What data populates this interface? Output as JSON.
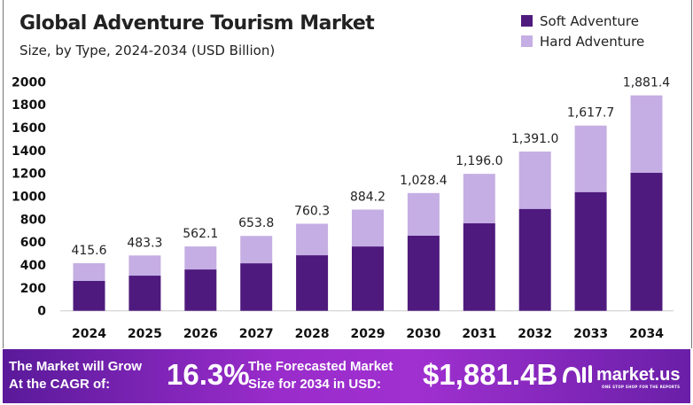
{
  "chart_data": {
    "type": "bar",
    "stacked": true,
    "title": "Global Adventure Tourism Market",
    "subtitle": "Size, by Type, 2024-2034 (USD Billion)",
    "categories": [
      "2024",
      "2025",
      "2026",
      "2027",
      "2028",
      "2029",
      "2030",
      "2031",
      "2032",
      "2033",
      "2034"
    ],
    "series": [
      {
        "name": "Soft Adventure",
        "color": "#4f1a7e",
        "values": [
          261,
          307,
          361,
          415,
          485,
          562,
          656,
          764,
          890,
          1037,
          1205
        ]
      },
      {
        "name": "Hard Adventure",
        "color": "#c5aee3",
        "values": [
          154.6,
          176.3,
          201.1,
          238.8,
          275.3,
          322.2,
          372.4,
          432.0,
          501.0,
          580.7,
          676.4
        ]
      }
    ],
    "totals_labels": [
      "415.6",
      "483.3",
      "562.1",
      "653.8",
      "760.3",
      "884.2",
      "1,028.4",
      "1,196.0",
      "1,391.0",
      "1,617.7",
      "1,881.4"
    ],
    "ylim": [
      0,
      2000
    ],
    "yticks": [
      0,
      200,
      400,
      600,
      800,
      1000,
      1200,
      1400,
      1600,
      1800,
      2000
    ],
    "grid": false,
    "legend_position": "top-right"
  },
  "banner": {
    "cagr_text_1": "The Market will Grow",
    "cagr_text_2": "At the CAGR of:",
    "cagr_value": "16.3%",
    "forecast_text_1": "The Forecasted Market",
    "forecast_text_2": "Size for 2034 in USD:",
    "forecast_value": "$1,881.4B",
    "logo_name": "market.us",
    "logo_tagline": "ONE STOP SHOP FOR THE REPORTS"
  }
}
